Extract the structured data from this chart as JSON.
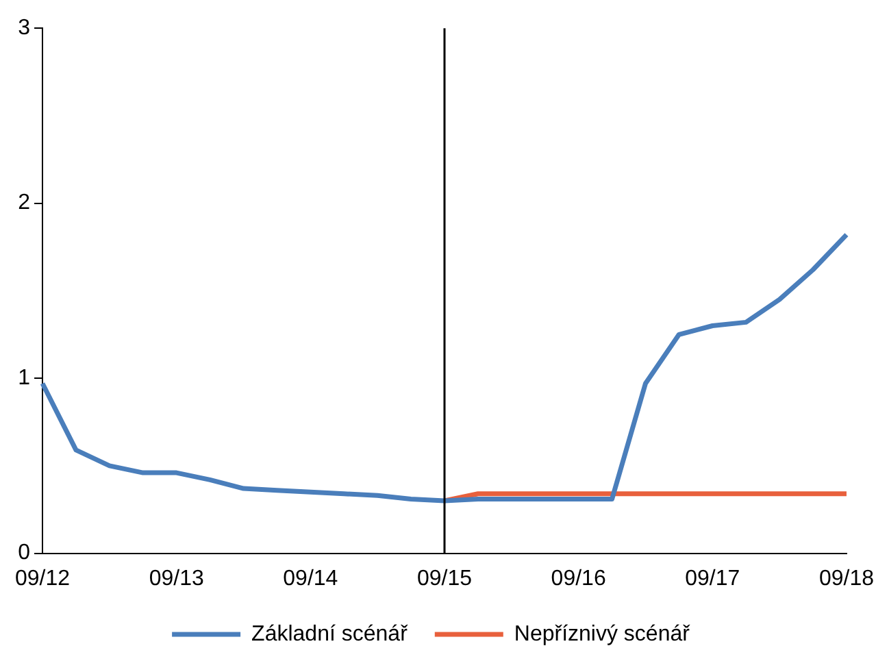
{
  "chart_data": {
    "type": "line",
    "categories": [
      "09/12",
      null,
      null,
      null,
      "09/13",
      null,
      null,
      null,
      "09/14",
      null,
      null,
      null,
      "09/15",
      null,
      null,
      null,
      "09/16",
      null,
      null,
      null,
      "09/17",
      null,
      null,
      null,
      "09/18"
    ],
    "series": [
      {
        "name": "Základní scénář",
        "color": "#4a7ebb",
        "values": [
          0.97,
          0.59,
          0.5,
          0.46,
          0.46,
          0.42,
          0.37,
          0.36,
          0.35,
          0.34,
          0.33,
          0.31,
          0.3,
          0.31,
          0.31,
          0.31,
          0.31,
          0.31,
          0.97,
          1.25,
          1.3,
          1.32,
          1.45,
          1.62,
          1.82
        ]
      },
      {
        "name": "Nepříznivý scénář",
        "color": "#e8603c",
        "values": [
          null,
          null,
          null,
          null,
          null,
          null,
          null,
          null,
          null,
          null,
          null,
          null,
          0.3,
          0.34,
          0.34,
          0.34,
          0.34,
          0.34,
          0.34,
          0.34,
          0.34,
          0.34,
          0.34,
          0.34,
          0.34
        ]
      }
    ],
    "ylim": [
      0,
      3
    ],
    "yticks": [
      0,
      1,
      2,
      3
    ],
    "grid": false,
    "legend": "bottom",
    "marker": "none",
    "line_style": "solid",
    "ref_lines": [
      {
        "axis": "x",
        "value": "09/15",
        "color": "#000000"
      }
    ]
  }
}
